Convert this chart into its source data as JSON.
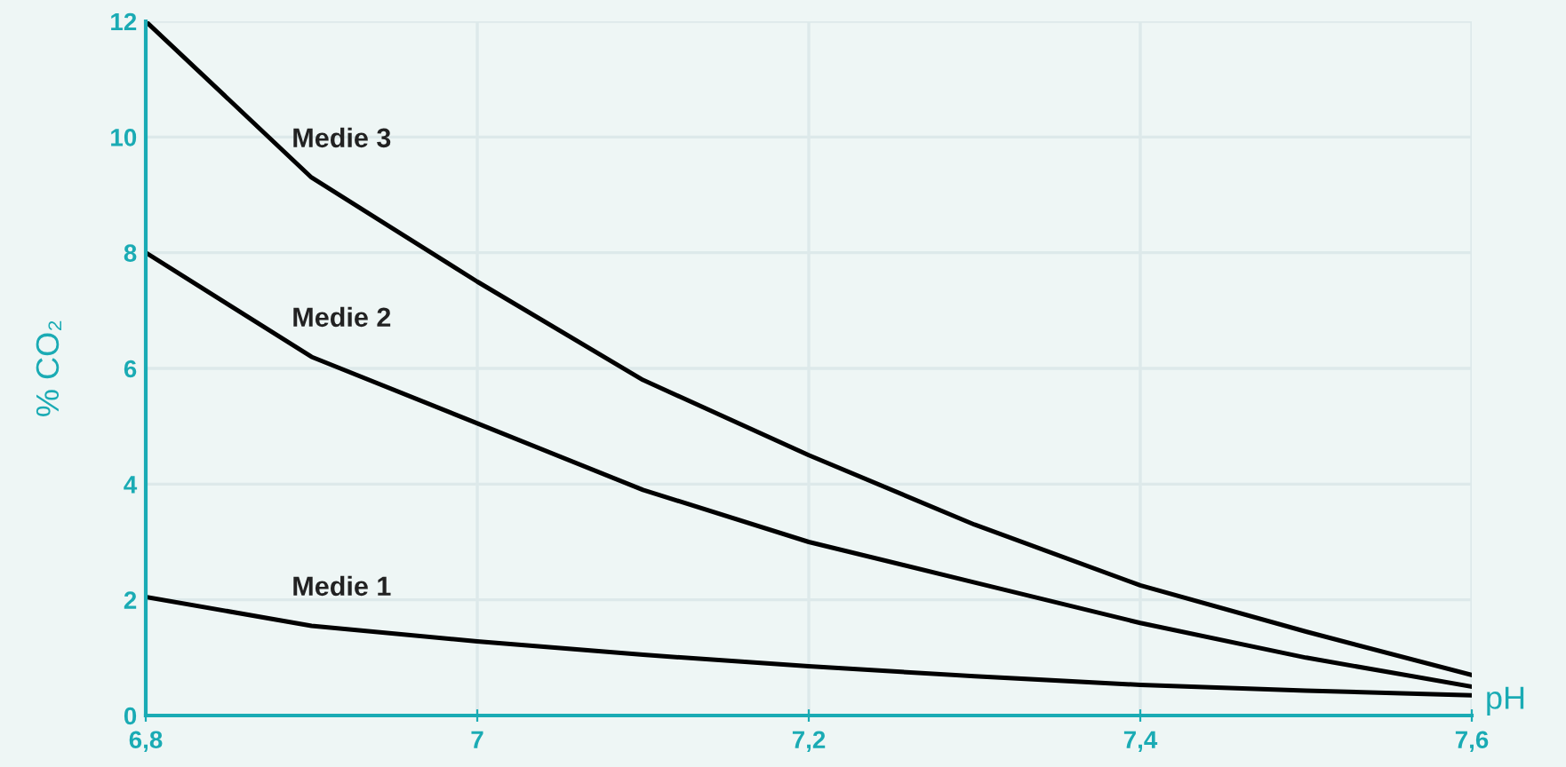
{
  "chart_data": {
    "type": "line",
    "xlabel": "pH",
    "ylabel": "% CO₂",
    "x": [
      6.8,
      6.9,
      7.0,
      7.1,
      7.2,
      7.3,
      7.4,
      7.5,
      7.6
    ],
    "series": [
      {
        "name": "Medie 3",
        "color": "#000000",
        "values": [
          12,
          9.3,
          7.5,
          5.8,
          4.5,
          3.3,
          2.25,
          1.45,
          0.7
        ]
      },
      {
        "name": "Medie 2",
        "color": "#000000",
        "values": [
          8,
          6.2,
          5.05,
          3.9,
          3.0,
          2.3,
          1.6,
          1.0,
          0.5
        ]
      },
      {
        "name": "Medie 1",
        "color": "#000000",
        "values": [
          2.05,
          1.55,
          1.28,
          1.05,
          0.85,
          0.68,
          0.53,
          0.43,
          0.35
        ]
      }
    ],
    "xlim": [
      6.8,
      7.6
    ],
    "ylim": [
      0,
      12
    ],
    "xticks": [
      {
        "value": 6.8,
        "label": "6,8"
      },
      7,
      {
        "value": 7.2,
        "label": "7,2"
      },
      {
        "value": 7.4,
        "label": "7,4"
      },
      {
        "value": 7.6,
        "label": "7,6"
      }
    ],
    "yticks": [
      0,
      2,
      4,
      6,
      8,
      10,
      12
    ],
    "grid": true,
    "legend": false,
    "marker": "none",
    "line_style": "solid"
  }
}
